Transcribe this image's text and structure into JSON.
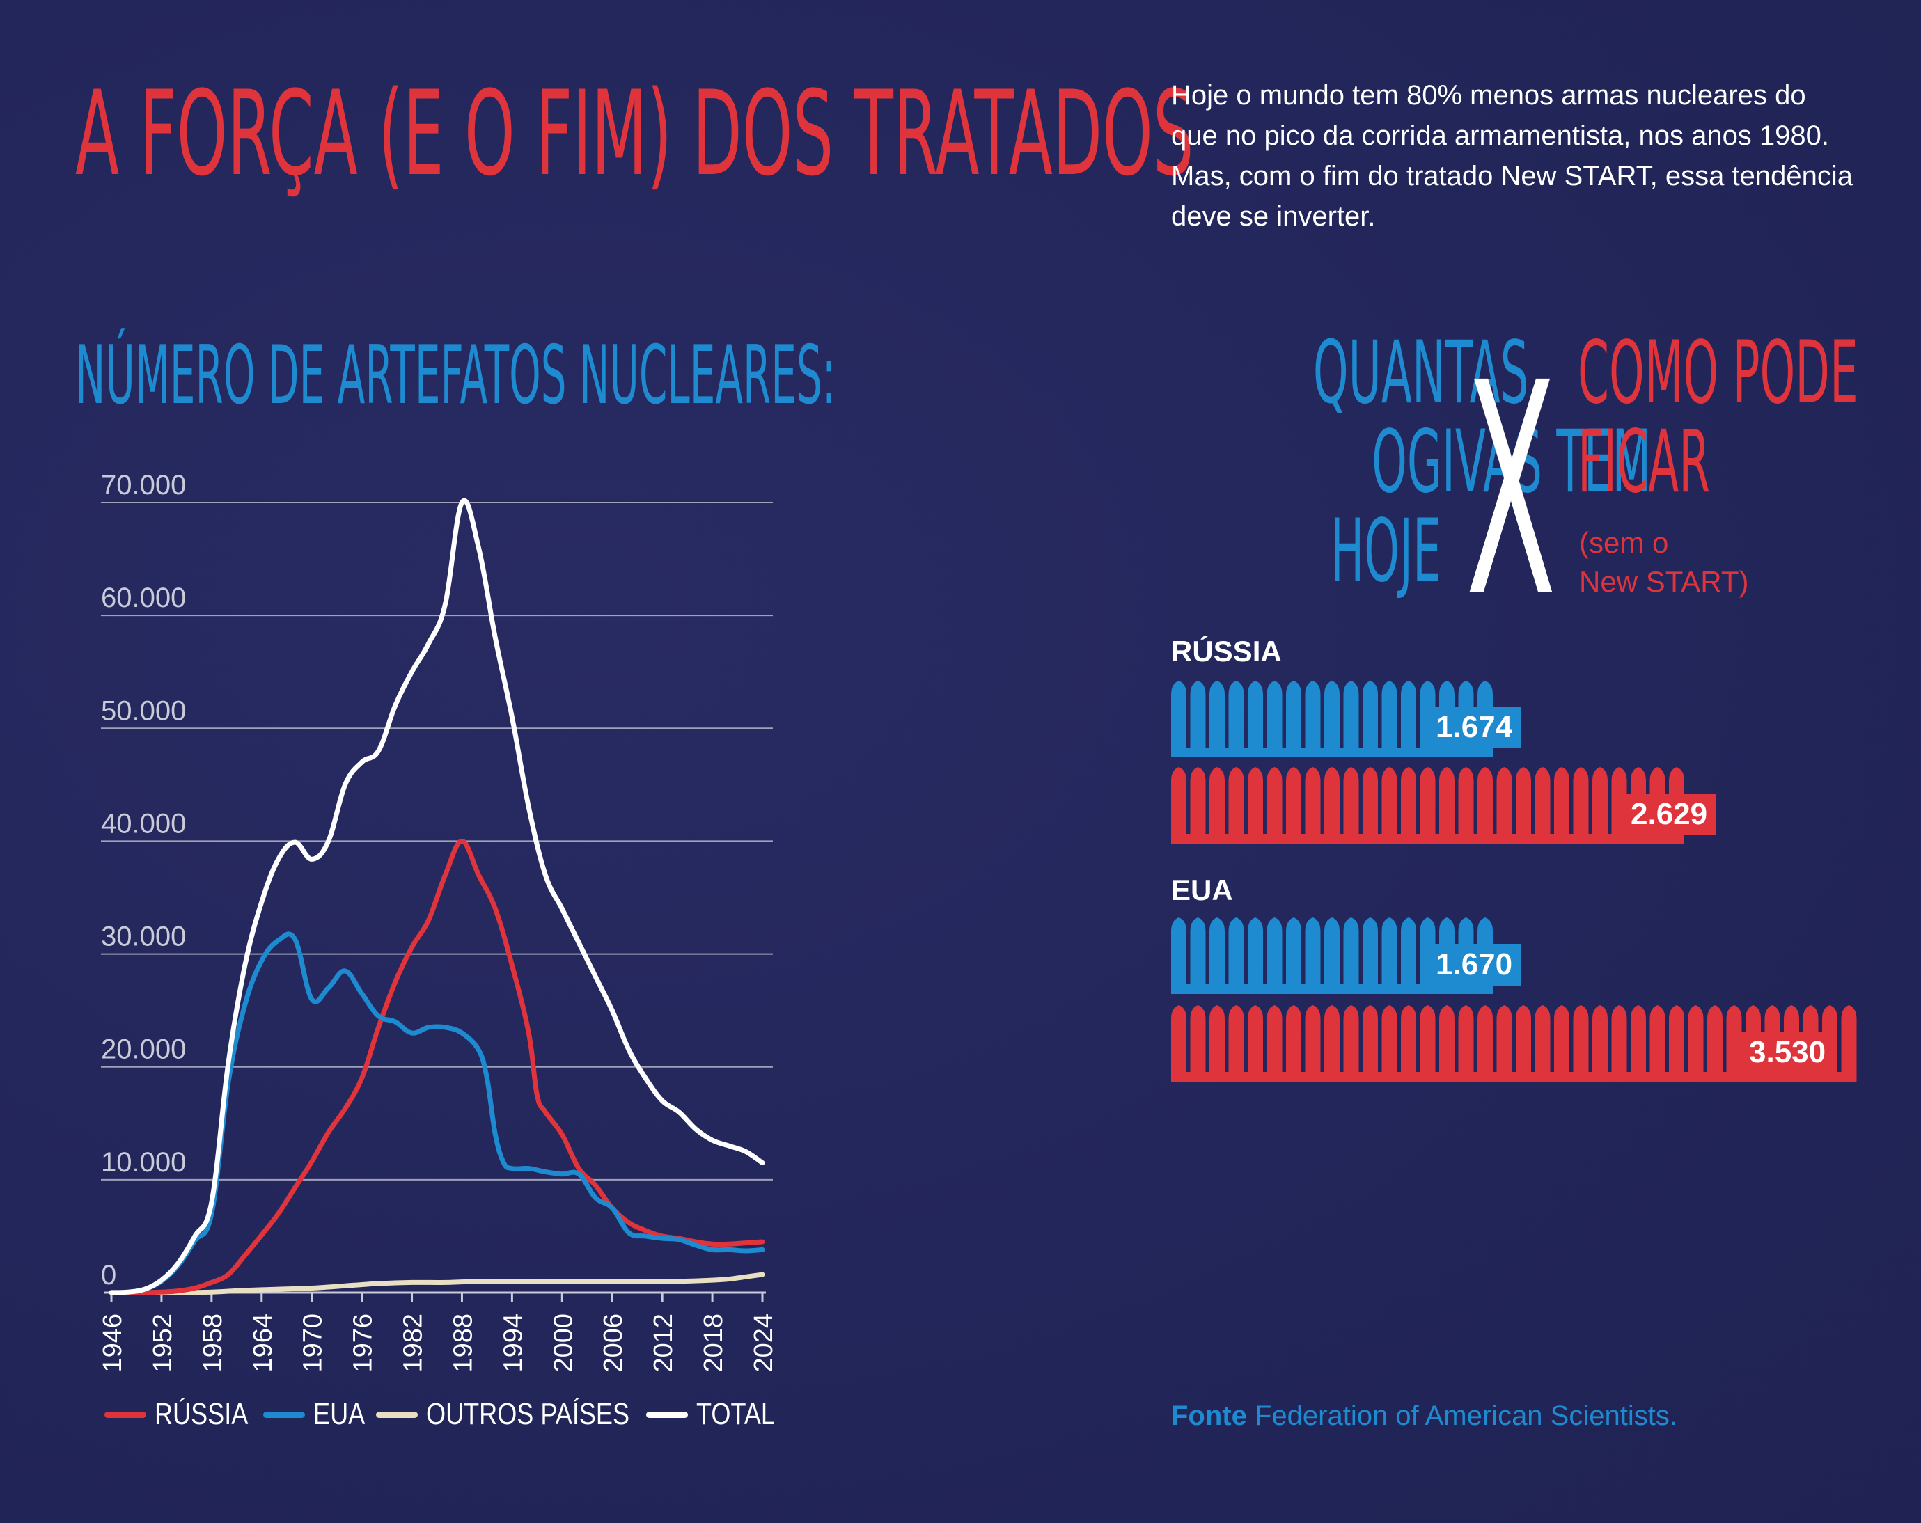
{
  "title": "A FORÇA (E O FIM) DOS TRATADOS",
  "intro": "Hoje o mundo tem 80% menos armas nucleares do que no pico da corrida armamentista, nos anos 1980. Mas, com o fim do tratado New START, essa tendência deve se inverter.",
  "chart_heading": "NÚMERO DE ARTEFATOS NUCLEARES:",
  "colors": {
    "background": "#23265a",
    "red": "#e0343d",
    "blue": "#1e8ad0",
    "white": "#ffffff",
    "cream": "#e9dfc3",
    "grid": "#c9cbd8"
  },
  "chart_data": [
    {
      "type": "line",
      "y_ticks": [
        "0",
        "10.000",
        "20.000",
        "30.000",
        "40.000",
        "50.000",
        "60.000",
        "70.000"
      ],
      "y_tick_values": [
        0,
        10000,
        20000,
        30000,
        40000,
        50000,
        60000,
        70000
      ],
      "x_ticks": [
        "1946",
        "1952",
        "1958",
        "1964",
        "1970",
        "1976",
        "1982",
        "1988",
        "1994",
        "2000",
        "2006",
        "2012",
        "2018",
        "2024"
      ],
      "xlim": [
        1946,
        2024
      ],
      "ylim": [
        0,
        70000
      ],
      "grid": true,
      "legend_position": "bottom",
      "series": [
        {
          "name": "RÚSSIA",
          "color": "#e0343d",
          "points": [
            [
              1946,
              0
            ],
            [
              1948,
              0
            ],
            [
              1950,
              5
            ],
            [
              1952,
              50
            ],
            [
              1954,
              150
            ],
            [
              1956,
              400
            ],
            [
              1958,
              900
            ],
            [
              1960,
              1600
            ],
            [
              1962,
              3300
            ],
            [
              1964,
              5100
            ],
            [
              1966,
              7000
            ],
            [
              1968,
              9300
            ],
            [
              1970,
              11600
            ],
            [
              1972,
              14200
            ],
            [
              1974,
              16300
            ],
            [
              1976,
              19000
            ],
            [
              1978,
              23500
            ],
            [
              1980,
              27500
            ],
            [
              1982,
              30600
            ],
            [
              1984,
              33000
            ],
            [
              1986,
              37000
            ],
            [
              1988,
              40000
            ],
            [
              1990,
              37000
            ],
            [
              1992,
              34000
            ],
            [
              1994,
              29000
            ],
            [
              1996,
              23000
            ],
            [
              1997,
              17500
            ],
            [
              1998,
              16000
            ],
            [
              2000,
              14000
            ],
            [
              2002,
              11000
            ],
            [
              2004,
              9500
            ],
            [
              2006,
              7500
            ],
            [
              2008,
              6200
            ],
            [
              2010,
              5500
            ],
            [
              2012,
              5000
            ],
            [
              2014,
              4800
            ],
            [
              2016,
              4500
            ],
            [
              2018,
              4300
            ],
            [
              2020,
              4300
            ],
            [
              2022,
              4400
            ],
            [
              2024,
              4500
            ]
          ]
        },
        {
          "name": "EUA",
          "color": "#1e8ad0",
          "points": [
            [
              1946,
              9
            ],
            [
              1948,
              50
            ],
            [
              1950,
              300
            ],
            [
              1952,
              1000
            ],
            [
              1954,
              2400
            ],
            [
              1956,
              4600
            ],
            [
              1958,
              7000
            ],
            [
              1960,
              18600
            ],
            [
              1962,
              25500
            ],
            [
              1964,
              29400
            ],
            [
              1966,
              31200
            ],
            [
              1968,
              31300
            ],
            [
              1970,
              26000
            ],
            [
              1972,
              27000
            ],
            [
              1974,
              28500
            ],
            [
              1976,
              26500
            ],
            [
              1978,
              24500
            ],
            [
              1980,
              24000
            ],
            [
              1982,
              23000
            ],
            [
              1984,
              23500
            ],
            [
              1986,
              23500
            ],
            [
              1988,
              23000
            ],
            [
              1990,
              21500
            ],
            [
              1991,
              19000
            ],
            [
              1992,
              14000
            ],
            [
              1993,
              11500
            ],
            [
              1994,
              11000
            ],
            [
              1996,
              11000
            ],
            [
              1998,
              10700
            ],
            [
              2000,
              10500
            ],
            [
              2002,
              10500
            ],
            [
              2004,
              8400
            ],
            [
              2006,
              7500
            ],
            [
              2008,
              5300
            ],
            [
              2010,
              5000
            ],
            [
              2012,
              4800
            ],
            [
              2014,
              4700
            ],
            [
              2016,
              4200
            ],
            [
              2018,
              3800
            ],
            [
              2020,
              3800
            ],
            [
              2022,
              3700
            ],
            [
              2024,
              3800
            ]
          ]
        },
        {
          "name": "OUTROS PAÍSES",
          "color": "#e9dfc3",
          "points": [
            [
              1946,
              0
            ],
            [
              1952,
              0
            ],
            [
              1954,
              10
            ],
            [
              1958,
              50
            ],
            [
              1962,
              200
            ],
            [
              1966,
              300
            ],
            [
              1970,
              400
            ],
            [
              1974,
              600
            ],
            [
              1978,
              800
            ],
            [
              1982,
              900
            ],
            [
              1986,
              900
            ],
            [
              1990,
              1000
            ],
            [
              1994,
              1000
            ],
            [
              1998,
              1000
            ],
            [
              2002,
              1000
            ],
            [
              2006,
              1000
            ],
            [
              2010,
              1000
            ],
            [
              2014,
              1000
            ],
            [
              2018,
              1100
            ],
            [
              2020,
              1200
            ],
            [
              2022,
              1400
            ],
            [
              2024,
              1600
            ]
          ]
        },
        {
          "name": "TOTAL",
          "color": "#ffffff",
          "points": [
            [
              1946,
              9
            ],
            [
              1948,
              50
            ],
            [
              1950,
              300
            ],
            [
              1952,
              1100
            ],
            [
              1954,
              2600
            ],
            [
              1956,
              5000
            ],
            [
              1958,
              8000
            ],
            [
              1960,
              20300
            ],
            [
              1962,
              29000
            ],
            [
              1964,
              34600
            ],
            [
              1966,
              38400
            ],
            [
              1968,
              39900
            ],
            [
              1970,
              38400
            ],
            [
              1972,
              40000
            ],
            [
              1974,
              45000
            ],
            [
              1976,
              47000
            ],
            [
              1978,
              48000
            ],
            [
              1980,
              52000
            ],
            [
              1982,
              55000
            ],
            [
              1984,
              57500
            ],
            [
              1986,
              61000
            ],
            [
              1988,
              70000
            ],
            [
              1990,
              66000
            ],
            [
              1992,
              58000
            ],
            [
              1994,
              51000
            ],
            [
              1996,
              43000
            ],
            [
              1998,
              37000
            ],
            [
              2000,
              34000
            ],
            [
              2002,
              31000
            ],
            [
              2004,
              28000
            ],
            [
              2006,
              25000
            ],
            [
              2008,
              21500
            ],
            [
              2010,
              19000
            ],
            [
              2012,
              17000
            ],
            [
              2014,
              16000
            ],
            [
              2016,
              14500
            ],
            [
              2018,
              13500
            ],
            [
              2020,
              13000
            ],
            [
              2022,
              12500
            ],
            [
              2024,
              11500
            ]
          ]
        }
      ]
    },
    {
      "type": "bar",
      "groups": [
        {
          "country": "RÚSSIA",
          "bars": [
            {
              "label": "1.674",
              "value": 1674,
              "color": "#1e8ad0"
            },
            {
              "label": "2.629",
              "value": 2629,
              "color": "#e0343d"
            }
          ]
        },
        {
          "country": "EUA",
          "bars": [
            {
              "label": "1.670",
              "value": 1670,
              "color": "#1e8ad0"
            },
            {
              "label": "3.530",
              "value": 3530,
              "color": "#e0343d"
            }
          ]
        }
      ]
    }
  ],
  "comparison": {
    "left_lines": [
      "QUANTAS",
      "OGIVAS TEM",
      "HOJE"
    ],
    "separator": "X",
    "right_lines": [
      "COMO PODE",
      "FICAR"
    ],
    "right_note_lines": [
      "(sem o",
      "New START)"
    ]
  },
  "source": {
    "prefix": "Fonte",
    "text": "Federation of American Scientists."
  }
}
